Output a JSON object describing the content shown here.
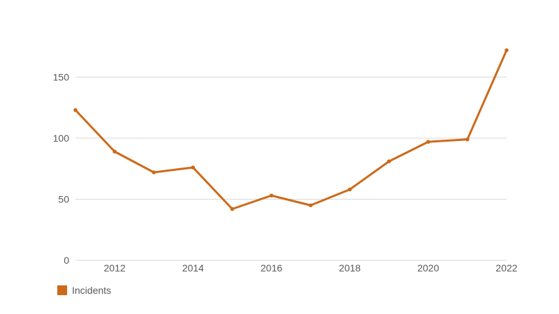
{
  "chart_data": {
    "type": "line",
    "title": "",
    "xlabel": "",
    "ylabel": "",
    "x": [
      2011,
      2012,
      2013,
      2014,
      2015,
      2016,
      2017,
      2018,
      2019,
      2020,
      2021,
      2022
    ],
    "series": [
      {
        "name": "Incidents",
        "values": [
          123,
          89,
          72,
          76,
          42,
          53,
          45,
          58,
          81,
          97,
          99,
          172
        ],
        "color": "#cc6a1a"
      }
    ],
    "xlim": [
      2011,
      2022
    ],
    "ylim": [
      0,
      180
    ],
    "x_tick_labels": [
      "2012",
      "2014",
      "2016",
      "2018",
      "2020",
      "2022"
    ],
    "y_tick_labels": [
      "0",
      "50",
      "100",
      "150"
    ],
    "grid": "horizontal",
    "legend_position": "bottom-left",
    "gridline_color": "#d9d9d9",
    "text_color": "#595959"
  }
}
